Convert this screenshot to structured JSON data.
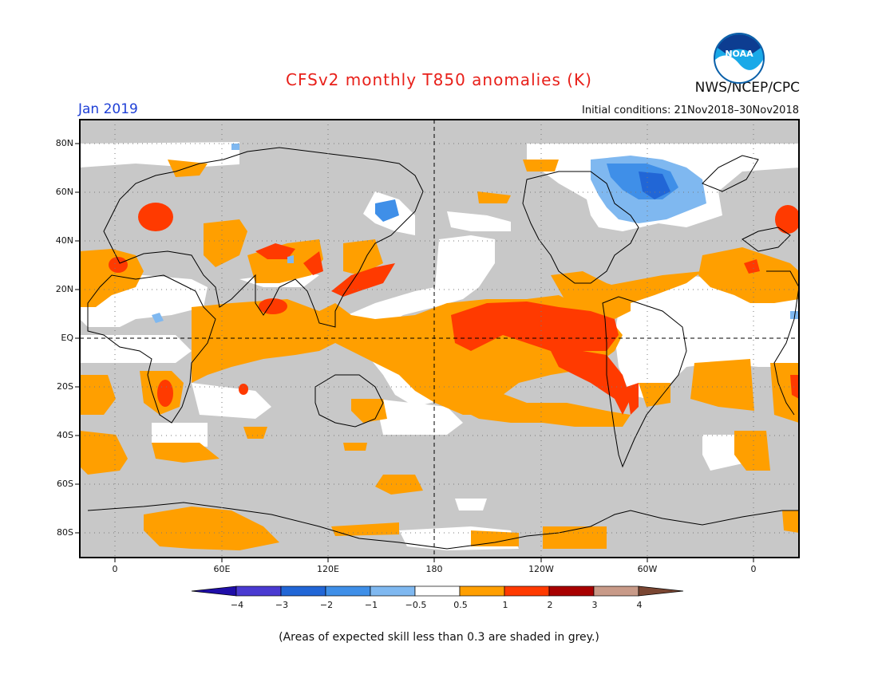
{
  "header": {
    "title": "CFSv2 monthly T850 anomalies (K)",
    "period": "Jan 2019",
    "initial_conditions": "Initial conditions: 21Nov2018–30Nov2018",
    "agency": "NWS/NCEP/CPC",
    "logo_text": "NOAA"
  },
  "axes": {
    "lat_labels": [
      "80N",
      "60N",
      "40N",
      "20N",
      "EQ",
      "20S",
      "40S",
      "60S",
      "80S"
    ],
    "lon_labels": [
      "0",
      "60E",
      "120E",
      "180",
      "120W",
      "60W",
      "0"
    ]
  },
  "colorbar": {
    "tick_labels": [
      "−4",
      "−3",
      "−2",
      "−1",
      "−0.5",
      "0.5",
      "1",
      "2",
      "3",
      "4"
    ],
    "colors": [
      "#1f0ea8",
      "#4a3ad1",
      "#2166d6",
      "#3f8fe8",
      "#7fb8f0",
      "#ffffff",
      "#ff9f00",
      "#ff3a00",
      "#a80000",
      "#c89a88",
      "#7a4632"
    ]
  },
  "footnote": "(Areas of expected skill less than 0.3 are shaded in grey.)",
  "colors": {
    "skill_grey": "#c8c8c8",
    "warm1": "#ff9f00",
    "warm2": "#ff3a00",
    "cool1": "#7fb8f0",
    "cool2": "#3f8fe8",
    "cool3": "#2166d6",
    "title_red": "#e8201a",
    "period_blue": "#1e3fd6"
  }
}
